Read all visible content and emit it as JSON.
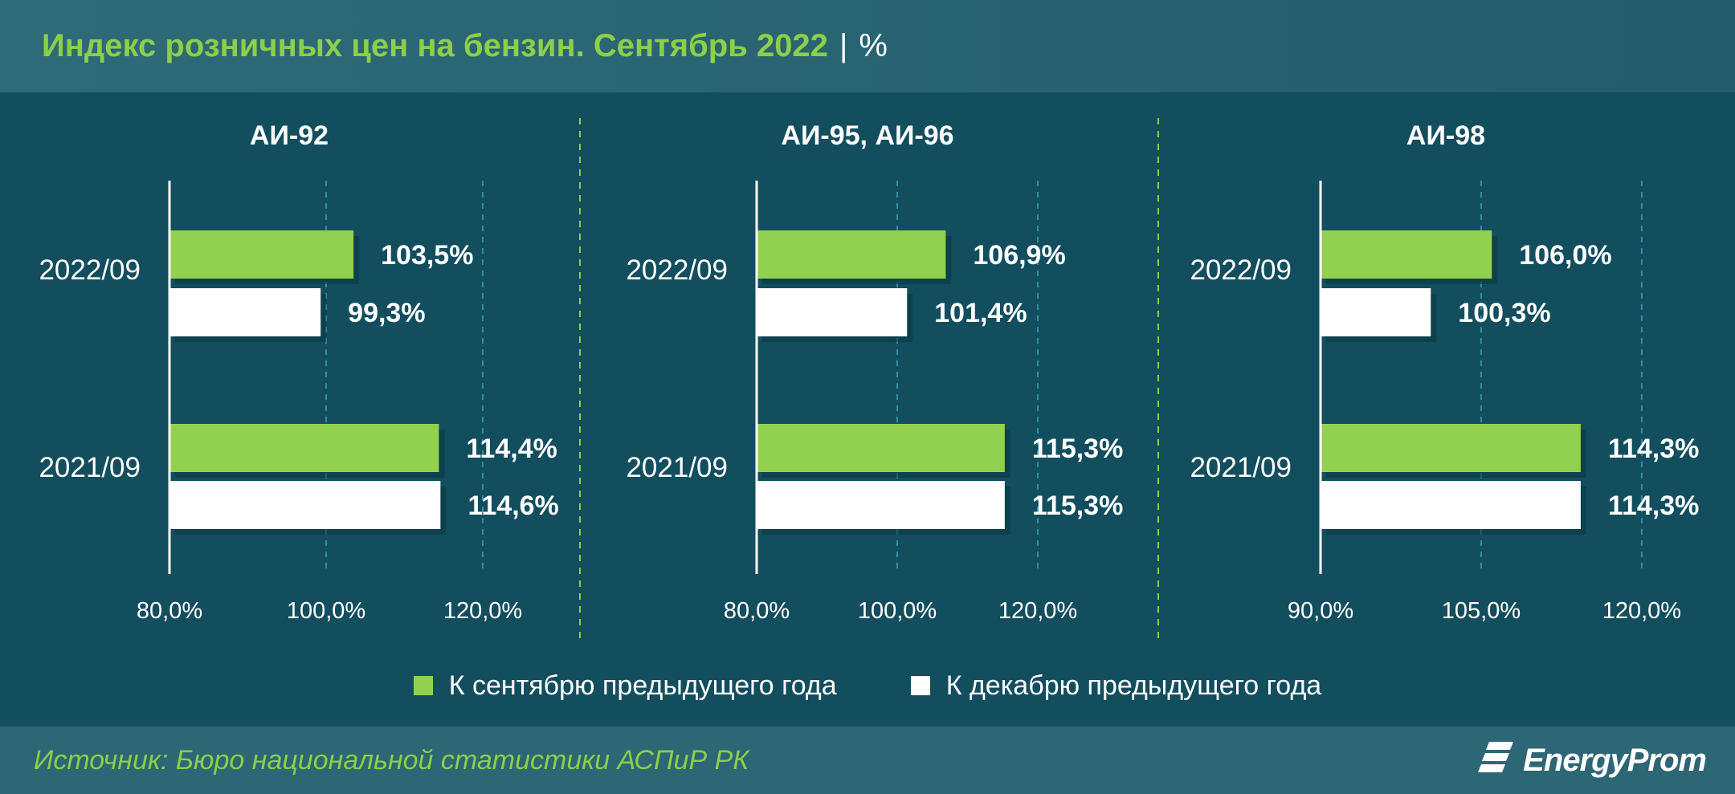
{
  "header": {
    "title": "Индекс розничных цен на бензин. Сентябрь 2022",
    "separator": "|",
    "unit": "%"
  },
  "colors": {
    "series1": "#92d050",
    "series2": "#ffffff",
    "title": "#8bcf4a",
    "background": "#134e5e",
    "gridline": "#2e8fa6",
    "divider": "#8bcf4a"
  },
  "legend": {
    "items": [
      {
        "label": "К сентябрю предыдущего года",
        "color": "#92d050"
      },
      {
        "label": "К декабрю предыдущего года",
        "color": "#ffffff"
      }
    ]
  },
  "footer": {
    "source": "Источник: Бюро национальной статистики АСПиР РК",
    "brand": "EnergyProm",
    "brand_icon": "energyprom-logo-icon"
  },
  "chart_data": [
    {
      "type": "bar",
      "orientation": "horizontal",
      "title": "АИ-92",
      "categories": [
        "2022/09",
        "2021/09"
      ],
      "series": [
        {
          "name": "К сентябрю предыдущего года",
          "values": [
            103.5,
            114.4
          ],
          "labels": [
            "103,5%",
            "114,4%"
          ]
        },
        {
          "name": "К декабрю предыдущего года",
          "values": [
            99.3,
            114.6
          ],
          "labels": [
            "99,3%",
            "114,6%"
          ]
        }
      ],
      "xlim": [
        80,
        130
      ],
      "xticks": [
        80,
        100,
        120
      ],
      "xtick_labels": [
        "80,0%",
        "100,0%",
        "120,0%"
      ],
      "grid": true
    },
    {
      "type": "bar",
      "orientation": "horizontal",
      "title": "АИ-95, АИ-96",
      "categories": [
        "2022/09",
        "2021/09"
      ],
      "series": [
        {
          "name": "К сентябрю предыдущего года",
          "values": [
            106.9,
            115.3
          ],
          "labels": [
            "106,9%",
            "115,3%"
          ]
        },
        {
          "name": "К декабрю предыдущего года",
          "values": [
            101.4,
            115.3
          ],
          "labels": [
            "101,4%",
            "115,3%"
          ]
        }
      ],
      "xlim": [
        80,
        130
      ],
      "xticks": [
        80,
        100,
        120
      ],
      "xtick_labels": [
        "80,0%",
        "100,0%",
        "120,0%"
      ],
      "grid": true
    },
    {
      "type": "bar",
      "orientation": "horizontal",
      "title": "АИ-98",
      "categories": [
        "2022/09",
        "2021/09"
      ],
      "series": [
        {
          "name": "К сентябрю предыдущего года",
          "values": [
            106.0,
            114.3
          ],
          "labels": [
            "106,0%",
            "114,3%"
          ]
        },
        {
          "name": "К декабрю предыдущего года",
          "values": [
            100.3,
            114.3
          ],
          "labels": [
            "100,3%",
            "114,3%"
          ]
        }
      ],
      "xlim": [
        90,
        125
      ],
      "xticks": [
        90,
        105,
        120
      ],
      "xtick_labels": [
        "90,0%",
        "105,0%",
        "120,0%"
      ],
      "grid": true
    }
  ]
}
